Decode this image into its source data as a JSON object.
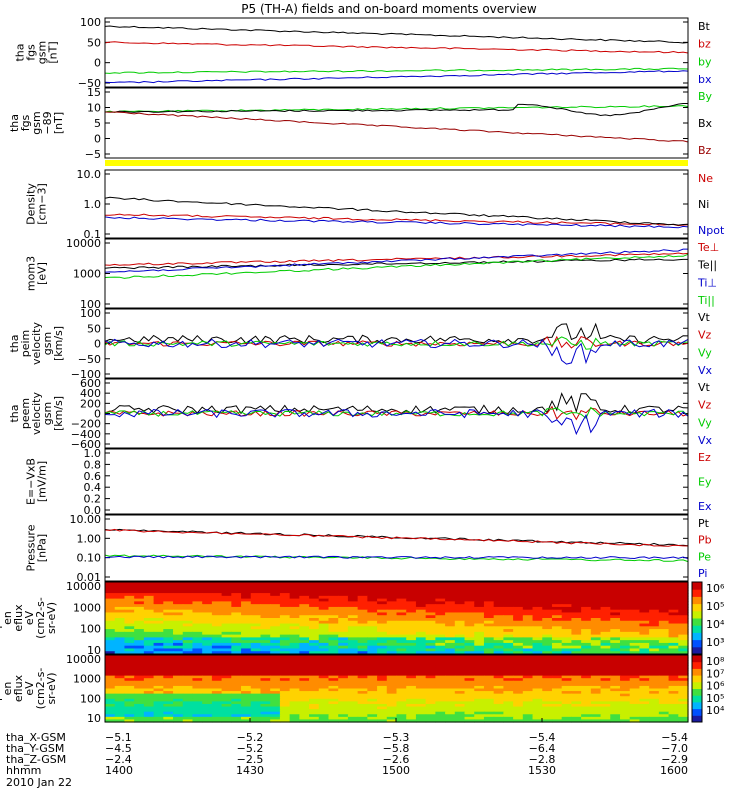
{
  "title": "P5 (TH-A) fields and on-board moments overview",
  "colors": {
    "black": "#000000",
    "red": "#cc0000",
    "green": "#00cc00",
    "blue": "#0000cc",
    "darkred": "#990000",
    "yellow": "#ffff00"
  },
  "chart_data": [
    {
      "type": "line",
      "ylabel": [
        "tha",
        "fgs",
        "gsm",
        "[nT]"
      ],
      "yticks": [
        "100",
        "50",
        "0",
        "−50"
      ],
      "yrange": [
        -65,
        105
      ],
      "series": [
        {
          "name": "Bt",
          "color": "#000000",
          "start": 85,
          "end": 45
        },
        {
          "name": "bz",
          "color": "#cc0000",
          "start": 45,
          "end": 20
        },
        {
          "name": "by",
          "color": "#00cc00",
          "start": -30,
          "end": -20
        },
        {
          "name": "bx",
          "color": "#0000cc",
          "start": -55,
          "end": -25
        }
      ]
    },
    {
      "type": "line",
      "ylabel": [
        "tha",
        "fgs",
        "gsm",
        "−89",
        "[nT]"
      ],
      "yticks": [
        "15",
        "10",
        "5",
        "0",
        "−5"
      ],
      "yrange": [
        -7.5,
        16
      ],
      "series": [
        {
          "name": "By",
          "color": "#00cc00",
          "start": 8,
          "end": 10
        },
        {
          "name": "Bx",
          "color": "#000000",
          "start": 8,
          "end": 9
        },
        {
          "name": "Bz",
          "color": "#990000",
          "start": 8,
          "end": -2
        }
      ]
    },
    {
      "type": "line",
      "ylabel": [
        "Density",
        "[cm−3]"
      ],
      "yticks": [
        "10.0",
        "1.0",
        "0.1"
      ],
      "yscale": "log",
      "series": [
        {
          "name": "Ne",
          "color": "#cc0000",
          "start": 0.45,
          "end": 0.2
        },
        {
          "name": "Ni",
          "color": "#000000",
          "start": 1.6,
          "end": 0.2
        },
        {
          "name": "Npot",
          "color": "#0000cc",
          "start": 0.35,
          "end": 0.17
        }
      ]
    },
    {
      "type": "line",
      "ylabel": [
        "mom3",
        "[eV]"
      ],
      "yticks": [
        "10000",
        "1000",
        "100"
      ],
      "yscale": "log",
      "series": [
        {
          "name": "Te⊥",
          "color": "#cc0000",
          "start": 1900,
          "end": 4500
        },
        {
          "name": "Te||",
          "color": "#000000",
          "start": 1500,
          "end": 3000
        },
        {
          "name": "Ti⊥",
          "color": "#0000cc",
          "start": 1100,
          "end": 6000
        },
        {
          "name": "Ti||",
          "color": "#00cc00",
          "start": 700,
          "end": 4000
        }
      ]
    },
    {
      "type": "line",
      "ylabel": [
        "tha",
        "peim",
        "velocity",
        "gsm",
        "[km/s]"
      ],
      "yticks": [
        "100",
        "50",
        "0",
        "−50",
        "−100"
      ],
      "yrange": [
        -100,
        100
      ],
      "series": [
        {
          "name": "Vt",
          "color": "#000000"
        },
        {
          "name": "Vz",
          "color": "#cc0000"
        },
        {
          "name": "Vy",
          "color": "#00cc00"
        },
        {
          "name": "Vx",
          "color": "#0000cc"
        }
      ]
    },
    {
      "type": "line",
      "ylabel": [
        "tha",
        "peem",
        "velocity",
        "gsm",
        "[km/s]"
      ],
      "yticks": [
        "600",
        "400",
        "200",
        "0",
        "−200",
        "−400",
        "−600"
      ],
      "yrange": [
        -600,
        600
      ],
      "series": [
        {
          "name": "Vt",
          "color": "#000000"
        },
        {
          "name": "Vz",
          "color": "#cc0000"
        },
        {
          "name": "Vy",
          "color": "#00cc00"
        },
        {
          "name": "Vx",
          "color": "#0000cc"
        }
      ]
    },
    {
      "type": "line",
      "ylabel": [
        "E=−VxB",
        "[mV/m]"
      ],
      "yticks": [
        "1.0",
        "0.8",
        "0.6",
        "0.4",
        "0.2",
        "0.0"
      ],
      "yrange": [
        0,
        1
      ],
      "series": [
        {
          "name": "Ez",
          "color": "#cc0000"
        },
        {
          "name": "Ey",
          "color": "#00cc00"
        },
        {
          "name": "Ex",
          "color": "#0000cc"
        }
      ]
    },
    {
      "type": "line",
      "ylabel": [
        "Pressure",
        "[nPa]"
      ],
      "yticks": [
        "10.00",
        "1.00",
        "0.10",
        "0.01"
      ],
      "yscale": "log",
      "series": [
        {
          "name": "Pt",
          "color": "#000000",
          "start": 2.8,
          "end": 0.45
        },
        {
          "name": "Pb",
          "color": "#cc0000",
          "start": 2.7,
          "end": 0.4
        },
        {
          "name": "Pe",
          "color": "#00cc00",
          "start": 0.13,
          "end": 0.07
        },
        {
          "name": "Pi",
          "color": "#0000cc",
          "start": 0.11,
          "end": 0.1
        }
      ]
    },
    {
      "type": "heatmap",
      "ylabel": [
        "tha",
        "peir",
        "en",
        "eflux",
        "eV",
        "(cm2-s-",
        "sr-eV)"
      ],
      "yticks": [
        "10000",
        "1000",
        "100",
        "10"
      ],
      "colorbar": [
        "10⁶",
        "10⁵",
        "10⁴",
        "10³"
      ]
    },
    {
      "type": "heatmap",
      "ylabel": [
        "tha",
        "peer",
        "en",
        "eflux",
        "eV",
        "(cm2-s-",
        "sr-eV)"
      ],
      "yticks": [
        "10000",
        "1000",
        "100",
        "10"
      ],
      "colorbar": [
        "10⁸",
        "10⁷",
        "10⁶",
        "10⁵",
        "10⁴"
      ]
    }
  ],
  "xaxis": {
    "rows": [
      {
        "label": "tha_X-GSM",
        "values": [
          "−5.1",
          "−5.2",
          "−5.3",
          "−5.4",
          "−5.4"
        ]
      },
      {
        "label": "tha_Y-GSM",
        "values": [
          "−4.5",
          "−5.2",
          "−5.8",
          "−6.4",
          "−7.0"
        ]
      },
      {
        "label": "tha_Z-GSM",
        "values": [
          "−2.4",
          "−2.5",
          "−2.6",
          "−2.8",
          "−2.9"
        ]
      },
      {
        "label": "hhmm",
        "values": [
          "1400",
          "1430",
          "1500",
          "1530",
          "1600"
        ]
      }
    ],
    "date": "2010 Jan 22"
  }
}
